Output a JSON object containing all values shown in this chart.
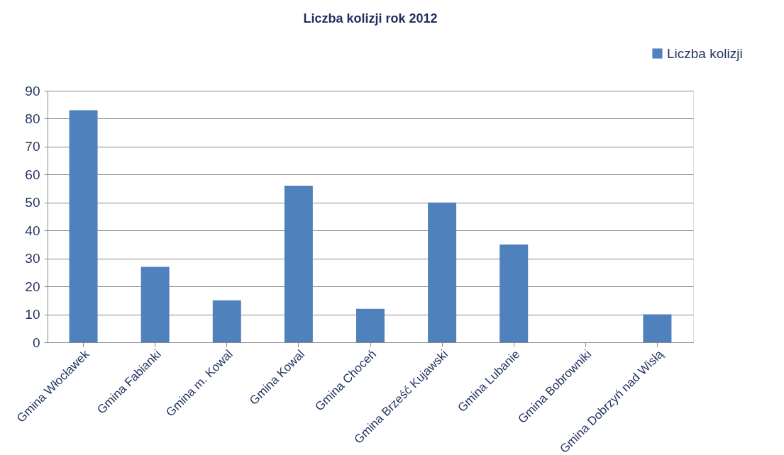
{
  "chart_data": {
    "type": "bar",
    "title": "Liczba kolizji rok 2012",
    "categories": [
      "Gmina Włocławek",
      "Gmina Fabianki",
      "Gmina m. Kowal",
      "Gmina Kowal",
      "Gmina Choceń",
      "Gmina Brześć Kujawski",
      "Gmina Lubanie",
      "Gmina Bobrowniki",
      "Gmina Dobrzyń nad Wisłą"
    ],
    "series": [
      {
        "name": "Liczba kolizji",
        "color": "#4f81bd",
        "values": [
          83,
          27,
          15,
          56,
          12,
          50,
          35,
          0,
          10
        ]
      }
    ],
    "ylim": [
      0,
      90
    ],
    "yticks": [
      0,
      10,
      20,
      30,
      40,
      50,
      60,
      70,
      80,
      90
    ],
    "grid": "y",
    "legend": "top right"
  }
}
